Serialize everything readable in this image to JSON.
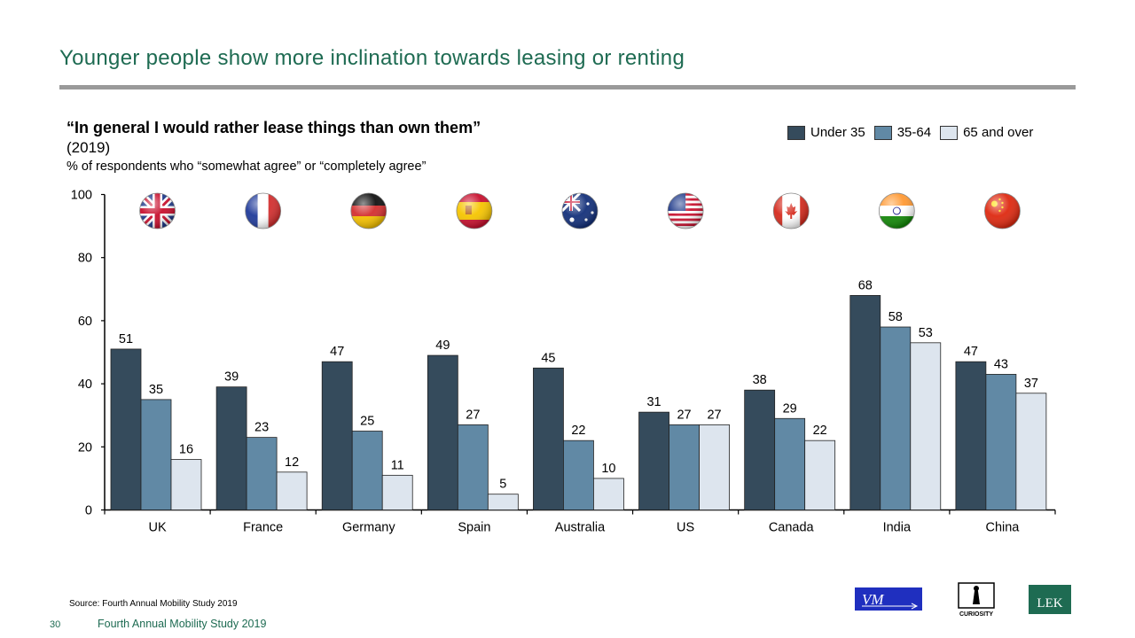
{
  "slide": {
    "title": "Younger people show more inclination towards leasing or renting",
    "quote": "“In general I would rather lease things than own them”",
    "year": "(2019)",
    "subtitle": "% of respondents who “somewhat agree” or “completely agree”",
    "source": "Source: Fourth Annual Mobility Study 2019",
    "page_number": "30",
    "footer_title": "Fourth Annual Mobility Study 2019"
  },
  "logos": {
    "vm": "VM",
    "curiosity": "CURIOSITY",
    "lek": "LEK"
  },
  "colors": {
    "title": "#1e6b52",
    "under35": "#354b5c",
    "age35_64": "#6189a5",
    "over65": "#dde5ee"
  },
  "flag_icons": [
    "uk-flag-icon",
    "france-flag-icon",
    "germany-flag-icon",
    "spain-flag-icon",
    "australia-flag-icon",
    "us-flag-icon",
    "canada-flag-icon",
    "india-flag-icon",
    "china-flag-icon"
  ],
  "chart_data": {
    "type": "bar",
    "categories": [
      "UK",
      "France",
      "Germany",
      "Spain",
      "Australia",
      "US",
      "Canada",
      "India",
      "China"
    ],
    "series": [
      {
        "name": "Under 35",
        "values": [
          51,
          39,
          47,
          49,
          45,
          31,
          38,
          68,
          47
        ]
      },
      {
        "name": "35-64",
        "values": [
          35,
          23,
          25,
          27,
          22,
          27,
          29,
          58,
          43
        ]
      },
      {
        "name": "65 and over",
        "values": [
          16,
          12,
          11,
          5,
          10,
          27,
          22,
          53,
          37
        ]
      }
    ],
    "ylim": [
      0,
      100
    ],
    "yticks": [
      0,
      20,
      40,
      60,
      80,
      100
    ],
    "legend": "top-right",
    "grid": false
  }
}
